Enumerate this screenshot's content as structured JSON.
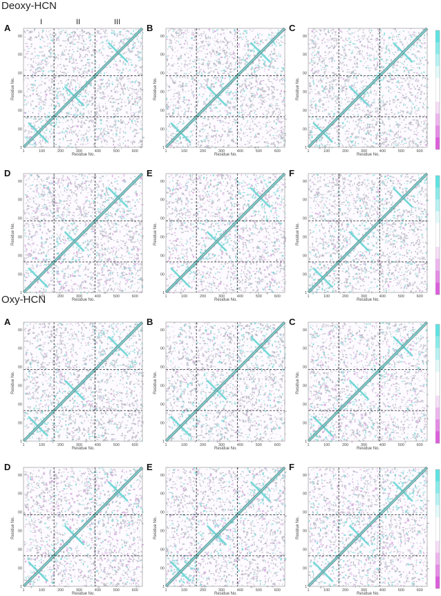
{
  "sections": [
    {
      "title": "Deoxy-HCN"
    },
    {
      "title": "Oxy-HCN"
    }
  ],
  "panel_letters": [
    "A",
    "B",
    "C",
    "D",
    "E",
    "F"
  ],
  "region_labels": [
    "I",
    "II",
    "III"
  ],
  "axis": {
    "xlabel": "Residue No.",
    "ylabel": "Residue No.",
    "xticks": [
      "1",
      "100",
      "200",
      "300",
      "400",
      "500",
      "600"
    ],
    "yticks": [
      "1",
      "100",
      "200",
      "300",
      "400",
      "500",
      "600"
    ]
  },
  "colorbar": {
    "ticks": [
      "1.0",
      "0.5",
      "0.0",
      "-0.5",
      "-1.0"
    ],
    "colors": [
      "#5fe3e3",
      "#8aeaea",
      "#b7f2f2",
      "#e4fafa",
      "#ffffff",
      "#ffffff",
      "#f6def6",
      "#eeb5ee",
      "#e58be5",
      "#dc5fdc"
    ]
  },
  "chart_data": {
    "type": "heatmap",
    "description_of_matrix": "Dynamic cross-correlation maps of residue fluctuations, 12 panels (A-F for each state)",
    "residue_range": [
      1,
      640
    ],
    "domain_boundaries": [
      165,
      385
    ],
    "value_range": [
      -1.0,
      1.0
    ],
    "panels": [
      {
        "section": "Deoxy-HCN",
        "letter": "A"
      },
      {
        "section": "Deoxy-HCN",
        "letter": "B"
      },
      {
        "section": "Deoxy-HCN",
        "letter": "C"
      },
      {
        "section": "Deoxy-HCN",
        "letter": "D"
      },
      {
        "section": "Deoxy-HCN",
        "letter": "E"
      },
      {
        "section": "Deoxy-HCN",
        "letter": "F"
      },
      {
        "section": "Oxy-HCN",
        "letter": "A"
      },
      {
        "section": "Oxy-HCN",
        "letter": "B"
      },
      {
        "section": "Oxy-HCN",
        "letter": "C"
      },
      {
        "section": "Oxy-HCN",
        "letter": "D"
      },
      {
        "section": "Oxy-HCN",
        "letter": "E"
      },
      {
        "section": "Oxy-HCN",
        "letter": "F"
      }
    ],
    "grid": false,
    "colorbar_position": "right"
  }
}
